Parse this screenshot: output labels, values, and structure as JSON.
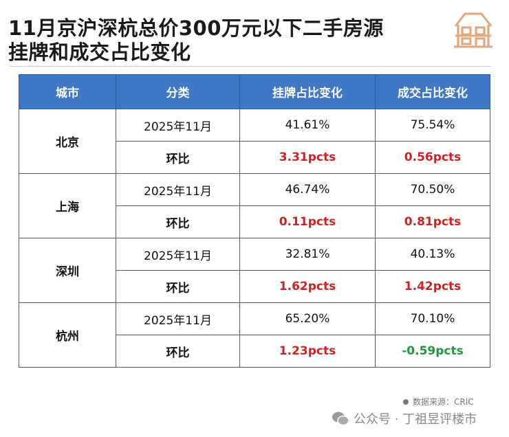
{
  "title": {
    "line1": "11月京沪深杭总价300万元以下二手房源",
    "line2": "挂牌和成交占比变化"
  },
  "table": {
    "headers": [
      "城市",
      "分类",
      "挂牌占比变化",
      "成交占比变化"
    ],
    "cities": [
      {
        "name": "北京",
        "rows": [
          {
            "cat": "2025年11月",
            "list": "41.61%",
            "deal": "75.54%"
          },
          {
            "cat": "环比",
            "list": "3.31pcts",
            "deal": "0.56pcts"
          }
        ]
      },
      {
        "name": "上海",
        "rows": [
          {
            "cat": "2025年11月",
            "list": "46.74%",
            "deal": "70.50%"
          },
          {
            "cat": "环比",
            "list": "0.11pcts",
            "deal": "0.81pcts"
          }
        ]
      },
      {
        "name": "深圳",
        "rows": [
          {
            "cat": "2025年11月",
            "list": "32.81%",
            "deal": "40.13%"
          },
          {
            "cat": "环比",
            "list": "1.62pcts",
            "deal": "1.42pcts"
          }
        ]
      },
      {
        "name": "杭州",
        "rows": [
          {
            "cat": "2025年11月",
            "list": "65.20%",
            "deal": "70.10%"
          },
          {
            "cat": "环比",
            "list": "1.23pcts",
            "deal": "-0.59pcts"
          }
        ]
      }
    ]
  },
  "footer": {
    "source": "数据来源：CRIC",
    "account": "公众号 · 丁祖昱评楼市"
  },
  "colors": {
    "header": "#3f77c7",
    "positive": "#d41f1f",
    "negative": "#1a9a3a"
  }
}
